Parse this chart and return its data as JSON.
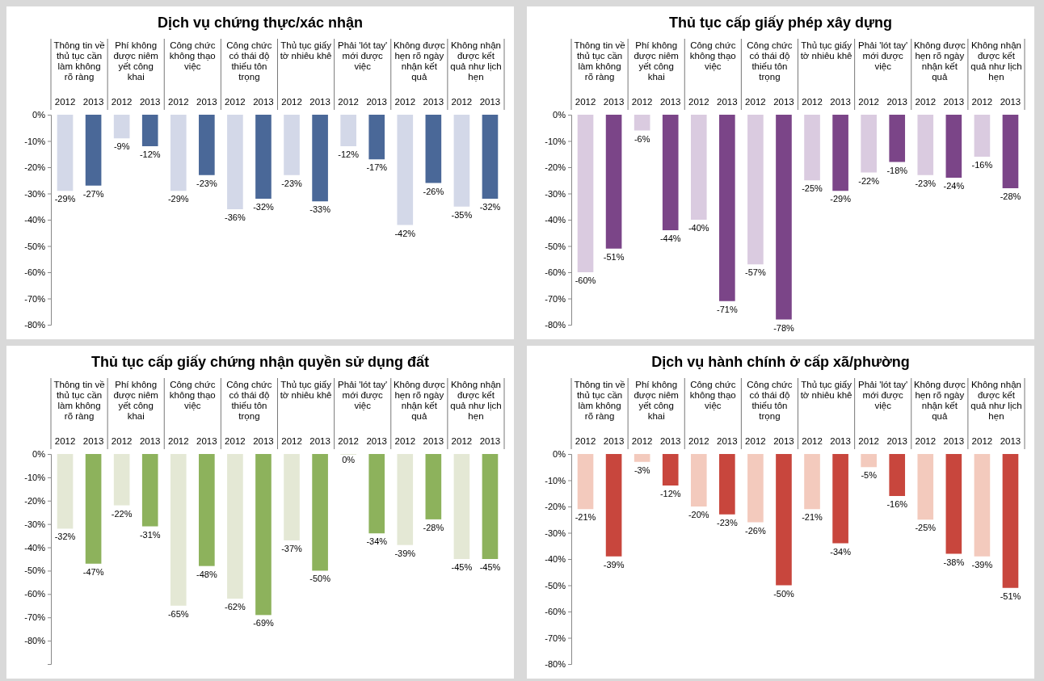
{
  "chart_data": [
    {
      "type": "bar",
      "title": "Dịch vụ chứng thực/xác nhận",
      "categories": [
        "Thông tin về thủ tục cần làm không rõ ràng",
        "Phí không được niêm yết công khai",
        "Công chức không thạo việc",
        "Công chức có thái độ thiếu tôn trọng",
        "Thủ tục giấy tờ nhiêu khê",
        "Phải 'lót tay' mới được việc",
        "Không được hẹn rõ ngày nhận kết quả",
        "Không nhận được kết quả như lịch hẹn"
      ],
      "series": [
        {
          "name": "2012",
          "color": "#d3d8e8",
          "values": [
            -29,
            -9,
            -29,
            -36,
            -23,
            -12,
            -42,
            -35
          ],
          "value_labels": [
            "-29%",
            "-9%",
            "-29%",
            "-36%",
            "-23%",
            "-12%",
            "-42%",
            "-35%"
          ]
        },
        {
          "name": "2013",
          "color": "#4a6898",
          "values": [
            -27,
            -12,
            -23,
            -32,
            -33,
            -17,
            -26,
            -32
          ],
          "value_labels": [
            "-27%",
            "-12%",
            "-23%",
            "-32%",
            "-33%",
            "-17%",
            "-26%",
            "-32%"
          ]
        }
      ],
      "ylim": [
        -80,
        0
      ],
      "yticks": [
        {
          "value": 0,
          "label": "0%"
        },
        {
          "value": -10,
          "label": "-10%"
        },
        {
          "value": -20,
          "label": "-20%"
        },
        {
          "value": -30,
          "label": "-30%"
        },
        {
          "value": -40,
          "label": "-40%"
        },
        {
          "value": -50,
          "label": "-50%"
        },
        {
          "value": -60,
          "label": "-60%"
        },
        {
          "value": -70,
          "label": "-70%"
        },
        {
          "value": -80,
          "label": "-80%"
        }
      ],
      "grid": false,
      "legend": false
    },
    {
      "type": "bar",
      "title": "Thủ tục cấp giấy phép xây dựng",
      "categories": [
        "Thông tin về thủ tục cần làm không rõ ràng",
        "Phí không được niêm yết công khai",
        "Công chức không thạo việc",
        "Công chức có thái độ thiếu tôn trọng",
        "Thủ tục giấy tờ nhiêu khê",
        "Phải 'lót tay' mới được việc",
        "Không được hẹn rõ ngày nhận kết quả",
        "Không nhận được kết quả như lịch hẹn"
      ],
      "series": [
        {
          "name": "2012",
          "color": "#dacbe0",
          "values": [
            -60,
            -6,
            -40,
            -57,
            -25,
            -22,
            -23,
            -16
          ],
          "value_labels": [
            "-60%",
            "-6%",
            "-40%",
            "-57%",
            "-25%",
            "-22%",
            "-23%",
            "-16%"
          ]
        },
        {
          "name": "2013",
          "color": "#7b4588",
          "values": [
            -51,
            -44,
            -71,
            -78,
            -29,
            -18,
            -24,
            -28
          ],
          "value_labels": [
            "-51%",
            "-44%",
            "-71%",
            "-78%",
            "-29%",
            "-18%",
            "-24%",
            "-28%"
          ]
        }
      ],
      "ylim": [
        -80,
        0
      ],
      "yticks": [
        {
          "value": 0,
          "label": "0%"
        },
        {
          "value": -10,
          "label": "-10%"
        },
        {
          "value": -20,
          "label": "-20%"
        },
        {
          "value": -30,
          "label": "-30%"
        },
        {
          "value": -40,
          "label": "-40%"
        },
        {
          "value": -50,
          "label": "-50%"
        },
        {
          "value": -60,
          "label": "-60%"
        },
        {
          "value": -70,
          "label": "-70%"
        },
        {
          "value": -80,
          "label": "-80%"
        }
      ],
      "grid": false,
      "legend": false
    },
    {
      "type": "bar",
      "title": "Thủ tục cấp giấy chứng nhận quyền sử dụng đất",
      "categories": [
        "Thông tin về thủ tục cần làm không rõ ràng",
        "Phí không được niêm yết công khai",
        "Công chức không thạo việc",
        "Công chức có thái độ thiếu tôn trọng",
        "Thủ tục giấy tờ nhiêu khê",
        "Phải 'lót tay' mới được việc",
        "Không được hẹn rõ ngày nhận kết quả",
        "Không nhận được kết quả như lịch hẹn"
      ],
      "series": [
        {
          "name": "2012",
          "color": "#e4e8d5",
          "values": [
            -32,
            -22,
            -65,
            -62,
            -37,
            0,
            -39,
            -45
          ],
          "value_labels": [
            "-32%",
            "-22%",
            "-65%",
            "-62%",
            "-37%",
            "0%",
            "-39%",
            "-45%"
          ]
        },
        {
          "name": "2013",
          "color": "#8db25c",
          "values": [
            -47,
            -31,
            -48,
            -69,
            -50,
            -34,
            -28,
            -45
          ],
          "value_labels": [
            "-47%",
            "-31%",
            "-48%",
            "-69%",
            "-50%",
            "-34%",
            "-28%",
            "-45%"
          ]
        }
      ],
      "ylim": [
        -90,
        0
      ],
      "yticks": [
        {
          "value": 0,
          "label": "0%"
        },
        {
          "value": -10,
          "label": "-10%"
        },
        {
          "value": -20,
          "label": "-20%"
        },
        {
          "value": -30,
          "label": "-30%"
        },
        {
          "value": -40,
          "label": "-40%"
        },
        {
          "value": -50,
          "label": "-50%"
        },
        {
          "value": -60,
          "label": "-60%"
        },
        {
          "value": -70,
          "label": "-70%"
        },
        {
          "value": -80,
          "label": "-80%"
        }
      ],
      "grid": false,
      "legend": false
    },
    {
      "type": "bar",
      "title": "Dịch vụ hành chính ở cấp xã/phường",
      "categories": [
        "Thông tin về thủ tục cần làm không rõ ràng",
        "Phí không được niêm yết công khai",
        "Công chức không thạo việc",
        "Công chức có thái độ thiếu tôn trọng",
        "Thủ tục giấy tờ nhiêu khê",
        "Phải 'lót tay' mới được việc",
        "Không được hẹn rõ ngày nhận kết quả",
        "Không nhận được kết quả như lịch hẹn"
      ],
      "series": [
        {
          "name": "2012",
          "color": "#f3cabd",
          "values": [
            -21,
            -3,
            -20,
            -26,
            -21,
            -5,
            -25,
            -39
          ],
          "value_labels": [
            "-21%",
            "-3%",
            "-20%",
            "-26%",
            "-21%",
            "-5%",
            "-25%",
            "-39%"
          ]
        },
        {
          "name": "2013",
          "color": "#c8463d",
          "values": [
            -39,
            -12,
            -23,
            -50,
            -34,
            -16,
            -38,
            -51
          ],
          "value_labels": [
            "-39%",
            "-12%",
            "-23%",
            "-50%",
            "-34%",
            "-16%",
            "-38%",
            "-51%"
          ]
        }
      ],
      "ylim": [
        -80,
        0
      ],
      "yticks": [
        {
          "value": 0,
          "label": "0%"
        },
        {
          "value": -10,
          "label": "-10%"
        },
        {
          "value": -20,
          "label": "-20%"
        },
        {
          "value": -30,
          "label": "-30%"
        },
        {
          "value": -40,
          "label": "-40%"
        },
        {
          "value": -50,
          "label": "-50%"
        },
        {
          "value": -60,
          "label": "-60%"
        },
        {
          "value": -70,
          "label": "-70%"
        },
        {
          "value": -80,
          "label": "-80%"
        }
      ],
      "grid": false,
      "legend": false
    }
  ]
}
